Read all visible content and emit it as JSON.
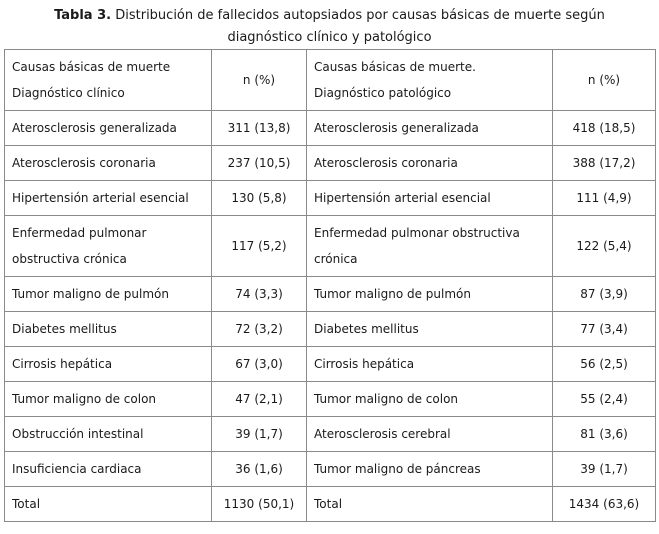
{
  "title": {
    "label": "Tabla 3.",
    "line1_rest": " Distribución de fallecidos autopsiados por causas básicas de muerte según",
    "line2": "diagnóstico clínico y patológico"
  },
  "table": {
    "headers": {
      "clinical_line1": "Causas básicas de muerte",
      "clinical_line2": "Diagnóstico clínico",
      "n_clinical": "n (%)",
      "pathological_line1": "Causas básicas de muerte.",
      "pathological_line2": "Diagnóstico patológico",
      "n_pathological": "n (%)"
    },
    "rows": [
      [
        "Aterosclerosis generalizada",
        "311 (13,8)",
        "Aterosclerosis generalizada",
        "418 (18,5)"
      ],
      [
        "Aterosclerosis coronaria",
        "237 (10,5)",
        "Aterosclerosis coronaria",
        "388 (17,2)"
      ],
      [
        "Hipertensión arterial esencial",
        "130 (5,8)",
        "Hipertensión arterial esencial",
        "111 (4,9)"
      ],
      [
        "Enfermedad pulmonar obstructiva crónica",
        "117 (5,2)",
        "Enfermedad pulmonar obstructiva crónica",
        "122 (5,4)"
      ],
      [
        "Tumor maligno de pulmón",
        "74 (3,3)",
        "Tumor maligno de pulmón",
        "87 (3,9)"
      ],
      [
        "Diabetes mellitus",
        "72 (3,2)",
        "Diabetes mellitus",
        "77 (3,4)"
      ],
      [
        "Cirrosis hepática",
        "67 (3,0)",
        "Cirrosis hepática",
        "56 (2,5)"
      ],
      [
        "Tumor maligno de colon",
        "47 (2,1)",
        "Tumor maligno de colon",
        "55 (2,4)"
      ],
      [
        "Obstrucción intestinal",
        "39 (1,7)",
        "Aterosclerosis cerebral",
        "81 (3,6)"
      ],
      [
        "Insuficiencia cardiaca",
        "36 (1,6)",
        "Tumor maligno de páncreas",
        "39 (1,7)"
      ],
      [
        "Total",
        "1130 (50,1)",
        "Total",
        "1434 (63,6)"
      ]
    ]
  },
  "colors": {
    "border": "#8a8a8a",
    "text": "#1a1a1a",
    "background": "#ffffff"
  }
}
